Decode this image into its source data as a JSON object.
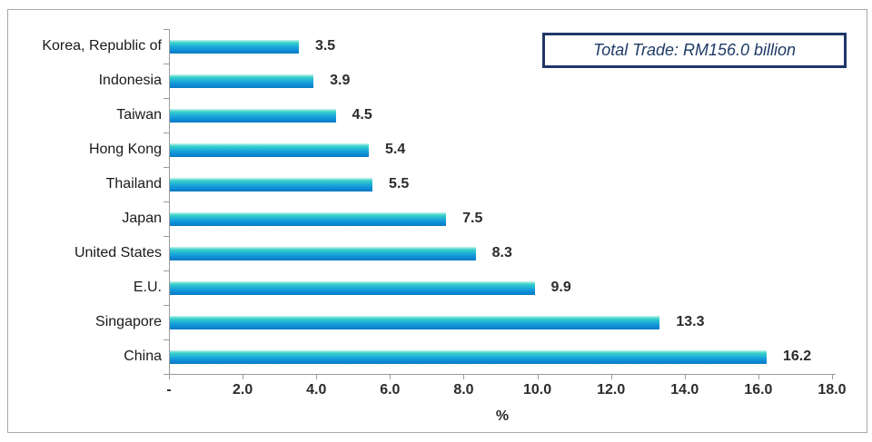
{
  "chart_data": {
    "type": "bar",
    "orientation": "horizontal",
    "title": "",
    "categories": [
      "Korea, Republic of",
      "Indonesia",
      "Taiwan",
      "Hong Kong",
      "Thailand",
      "Japan",
      "United States",
      "E.U.",
      "Singapore",
      "China"
    ],
    "values": [
      3.5,
      3.9,
      4.5,
      5.4,
      5.5,
      7.5,
      8.3,
      9.9,
      13.3,
      16.2
    ],
    "value_labels": [
      "3.5",
      "3.9",
      "4.5",
      "5.4",
      "5.5",
      "7.5",
      "8.3",
      "9.9",
      "13.3",
      "16.2"
    ],
    "xlabel": "%",
    "xlim": [
      0,
      18
    ],
    "x_ticks": [
      {
        "value": 0,
        "label": "-"
      },
      {
        "value": 2,
        "label": "2.0"
      },
      {
        "value": 4,
        "label": "4.0"
      },
      {
        "value": 6,
        "label": "6.0"
      },
      {
        "value": 8,
        "label": "8.0"
      },
      {
        "value": 10,
        "label": "10.0"
      },
      {
        "value": 12,
        "label": "12.0"
      },
      {
        "value": 14,
        "label": "14.0"
      },
      {
        "value": 16,
        "label": "16.0"
      },
      {
        "value": 18,
        "label": "18.0"
      }
    ],
    "grid": "off",
    "legend": "none",
    "annotation": "Total Trade: RM156.0 billion",
    "colors": {
      "bar_gradient_top": "#cef5ee",
      "bar_gradient_mid": "#18a5da",
      "bar_gradient_bottom": "#0a7bc0",
      "axis": "#9b9b9b",
      "text": "#2b2b2b",
      "annotation_border": "#1f3767",
      "annotation_text": "#1e3a66",
      "frame_border": "#a8a8a8"
    }
  }
}
